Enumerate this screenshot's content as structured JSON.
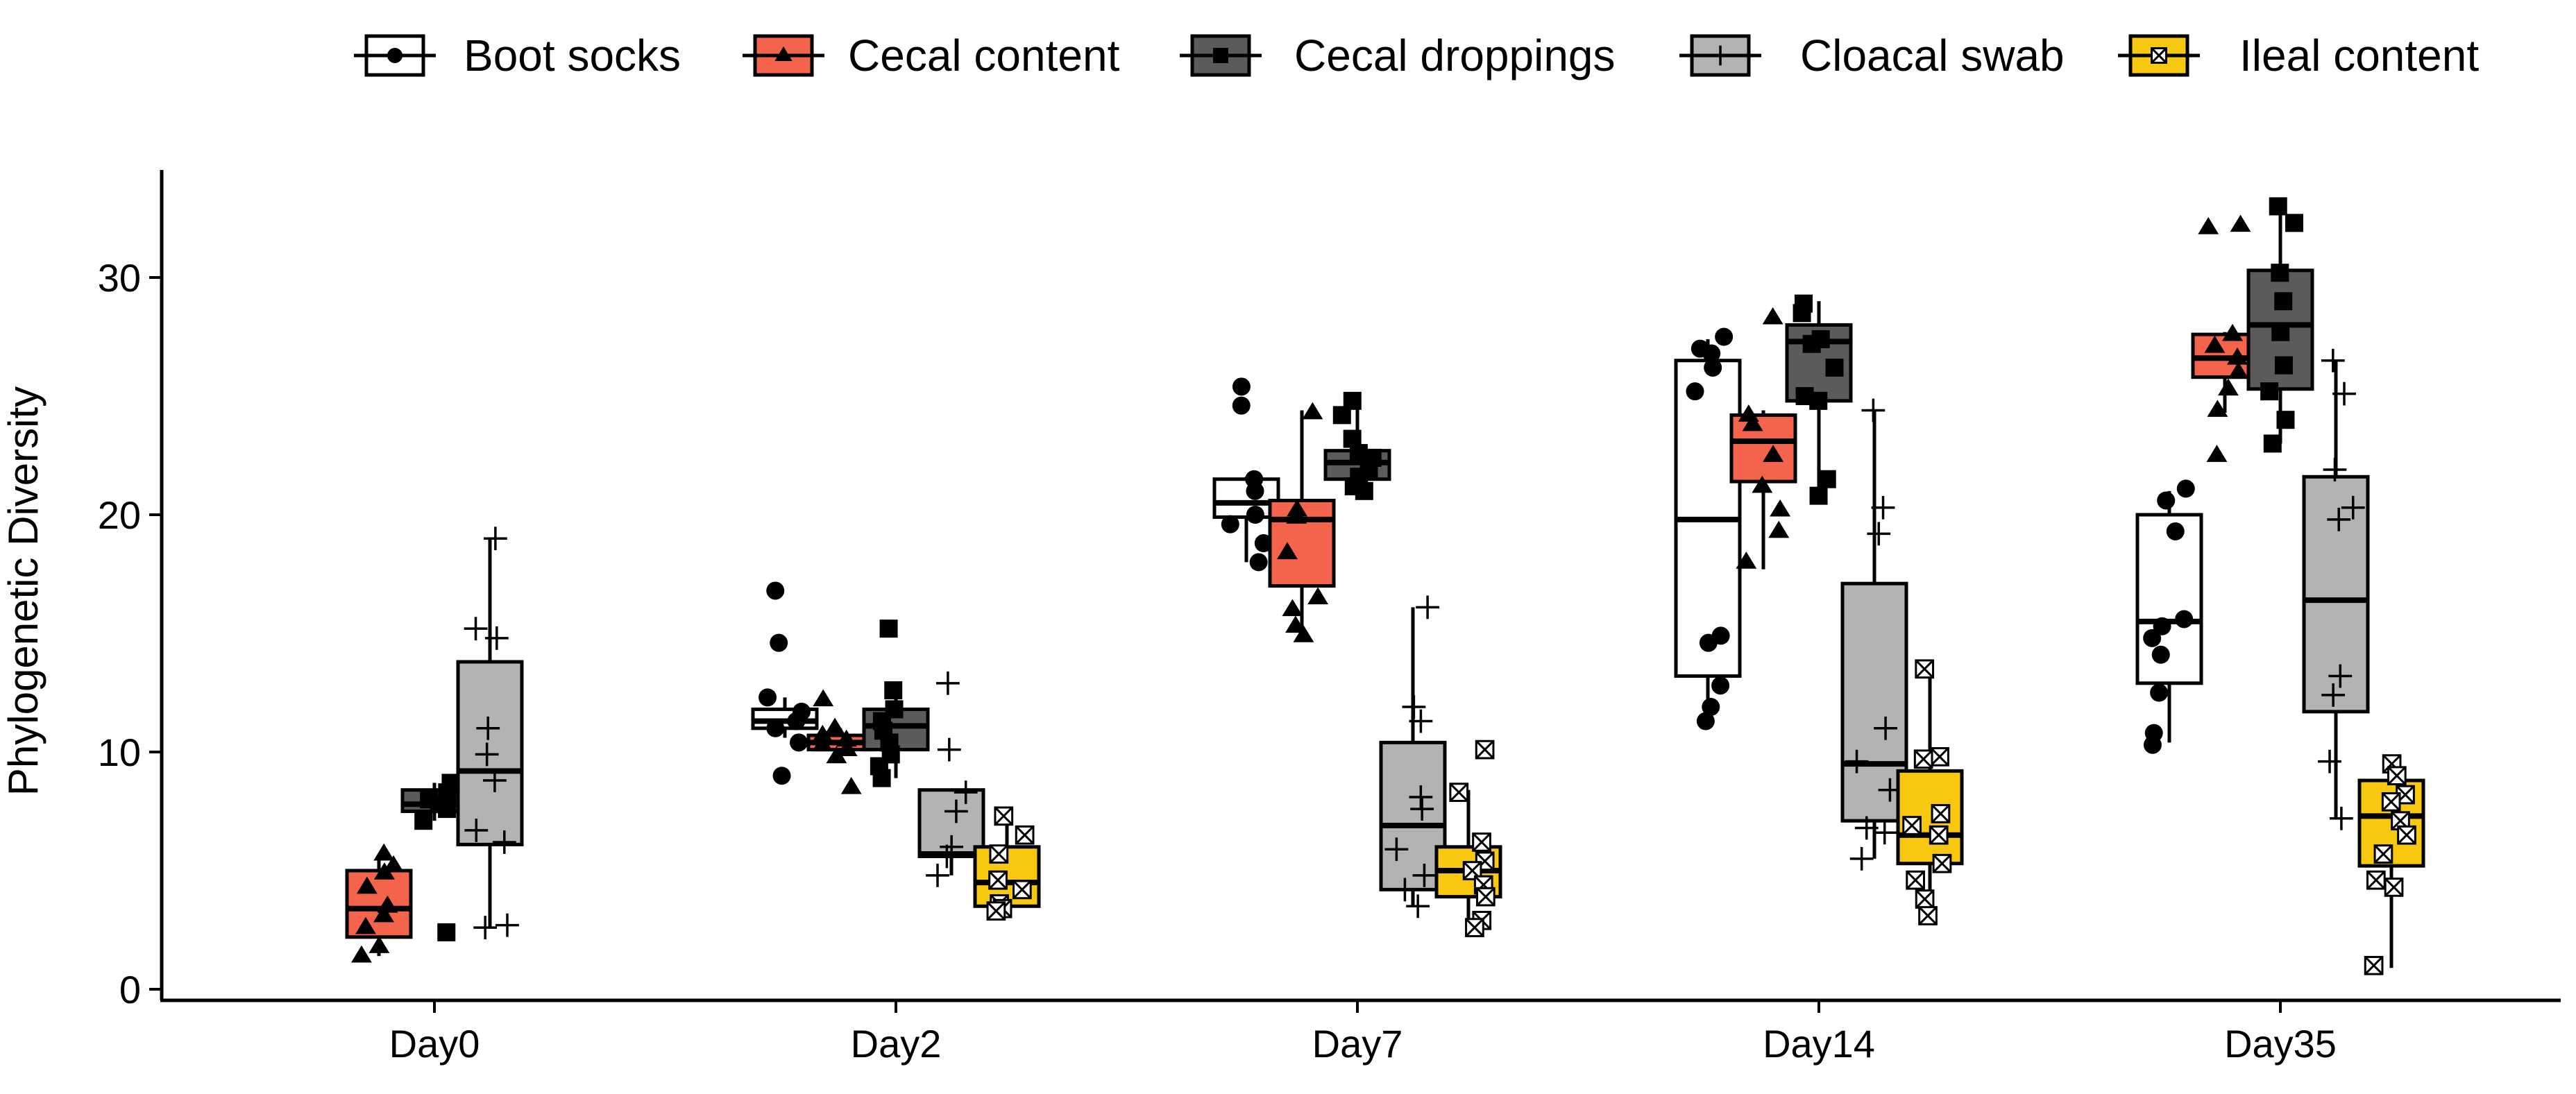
{
  "chart_data": {
    "type": "box",
    "title": "",
    "xlabel": "",
    "ylabel": "Phylogenetic Diversity",
    "ylim": [
      -0.5,
      35
    ],
    "yticks": [
      0,
      10,
      20,
      30
    ],
    "grid": false,
    "legend_position": "top",
    "categories": [
      "Day0",
      "Day2",
      "Day7",
      "Day14",
      "Day35"
    ],
    "series": [
      {
        "name": "Boot socks",
        "fill": "#ffffff",
        "marker": "circle",
        "boxes": [
          null,
          {
            "category": "Day2",
            "q1": 11.0,
            "median": 11.3,
            "q3": 11.8,
            "whisker_low": 10.6,
            "whisker_high": 12.3,
            "points": [
              16.8,
              14.6,
              12.3,
              11.7,
              11.3,
              11.0,
              10.4,
              9.0
            ]
          },
          {
            "category": "Day7",
            "q1": 19.9,
            "median": 20.5,
            "q3": 21.5,
            "whisker_low": 18.0,
            "whisker_high": 21.6,
            "points": [
              25.4,
              24.6,
              21.5,
              21.0,
              20.0,
              19.6,
              18.8,
              18.0
            ]
          },
          {
            "category": "Day14",
            "q1": 13.2,
            "median": 19.8,
            "q3": 26.5,
            "whisker_low": 11.3,
            "whisker_high": 27.4,
            "points": [
              27.5,
              27.0,
              26.8,
              26.2,
              25.2,
              14.9,
              14.6,
              12.8,
              11.9,
              11.3
            ]
          },
          {
            "category": "Day35",
            "q1": 12.9,
            "median": 15.5,
            "q3": 20.0,
            "whisker_low": 10.4,
            "whisker_high": 21.0,
            "points": [
              21.1,
              20.6,
              19.3,
              15.6,
              15.3,
              14.8,
              14.1,
              12.5,
              10.8,
              10.3
            ]
          }
        ]
      },
      {
        "name": "Cecal content",
        "fill": "#f4634c",
        "marker": "triangle",
        "boxes": [
          {
            "category": "Day0",
            "q1": 2.2,
            "median": 3.4,
            "q3": 5.0,
            "whisker_low": 1.4,
            "whisker_high": 5.6,
            "points": [
              5.7,
              5.2,
              4.9,
              4.3,
              3.5,
              3.1,
              2.6,
              1.8,
              1.4
            ]
          },
          {
            "category": "Day2",
            "q1": 10.1,
            "median": 10.4,
            "q3": 10.7,
            "whisker_low": 9.8,
            "whisker_high": 11.0,
            "points": [
              12.2,
              11.0,
              10.7,
              10.5,
              10.3,
              10.1,
              9.8,
              8.5
            ]
          },
          {
            "category": "Day7",
            "q1": 17.0,
            "median": 19.8,
            "q3": 20.6,
            "whisker_low": 14.8,
            "whisker_high": 24.4,
            "points": [
              24.3,
              20.2,
              19.9,
              18.4,
              16.5,
              16.0,
              15.3,
              14.9
            ]
          },
          {
            "category": "Day14",
            "q1": 21.4,
            "median": 23.1,
            "q3": 24.2,
            "whisker_low": 17.7,
            "whisker_high": 24.4,
            "points": [
              28.3,
              24.2,
              23.8,
              22.5,
              21.2,
              20.2,
              19.3,
              18.0
            ]
          },
          {
            "category": "Day35",
            "q1": 25.8,
            "median": 26.6,
            "q3": 27.6,
            "whisker_low": 24.3,
            "whisker_high": 27.7,
            "points": [
              32.2,
              32.1,
              27.6,
              27.1,
              26.6,
              26.0,
              25.3,
              24.4,
              22.5
            ]
          }
        ]
      },
      {
        "name": "Cecal droppings",
        "fill": "#5b5b5b",
        "marker": "square",
        "boxes": [
          {
            "category": "Day0",
            "q1": 7.5,
            "median": 7.8,
            "q3": 8.4,
            "whisker_low": 7.1,
            "whisker_high": 8.7,
            "points": [
              8.7,
              8.3,
              8.0,
              7.8,
              7.6,
              7.1,
              2.4
            ]
          },
          {
            "category": "Day2",
            "q1": 10.1,
            "median": 11.1,
            "q3": 11.8,
            "whisker_low": 8.9,
            "whisker_high": 12.6,
            "points": [
              15.2,
              12.6,
              11.8,
              11.3,
              10.9,
              10.4,
              9.9,
              9.4,
              8.9
            ]
          },
          {
            "category": "Day7",
            "q1": 21.5,
            "median": 22.2,
            "q3": 22.7,
            "whisker_low": 21.0,
            "whisker_high": 24.7,
            "points": [
              24.8,
              24.2,
              23.2,
              22.6,
              22.4,
              21.9,
              21.6,
              21.2,
              21.0
            ]
          },
          {
            "category": "Day14",
            "q1": 24.8,
            "median": 27.3,
            "q3": 28.0,
            "whisker_low": 20.7,
            "whisker_high": 29.0,
            "points": [
              28.9,
              28.5,
              27.4,
              27.2,
              26.2,
              25.0,
              24.8,
              21.5,
              20.8
            ]
          },
          {
            "category": "Day35",
            "q1": 25.3,
            "median": 28.0,
            "q3": 30.3,
            "whisker_low": 23.0,
            "whisker_high": 33.0,
            "points": [
              33.0,
              32.3,
              30.2,
              29.0,
              27.7,
              26.3,
              25.2,
              24.0,
              23.0
            ]
          }
        ]
      },
      {
        "name": "Cloacal swab",
        "fill": "#b3b3b3",
        "marker": "plus",
        "boxes": [
          {
            "category": "Day0",
            "q1": 6.1,
            "median": 9.2,
            "q3": 13.8,
            "whisker_low": 2.6,
            "whisker_high": 19.0,
            "points": [
              19.0,
              15.2,
              14.8,
              11.0,
              9.9,
              8.8,
              6.7,
              6.2,
              2.7,
              2.6
            ]
          },
          {
            "category": "Day2",
            "q1": 5.6,
            "median": 5.7,
            "q3": 8.4,
            "whisker_low": 4.8,
            "whisker_high": 8.4,
            "points": [
              12.9,
              10.1,
              8.3,
              7.5,
              6.0,
              5.6,
              4.8
            ]
          },
          {
            "category": "Day7",
            "q1": 4.2,
            "median": 6.9,
            "q3": 10.4,
            "whisker_low": 3.5,
            "whisker_high": 16.1,
            "points": [
              16.1,
              11.9,
              11.3,
              8.1,
              7.6,
              5.9,
              4.8,
              4.2,
              3.5
            ]
          },
          {
            "category": "Day14",
            "q1": 7.1,
            "median": 9.5,
            "q3": 17.1,
            "whisker_low": 5.5,
            "whisker_high": 24.4,
            "points": [
              24.4,
              20.3,
              19.2,
              11.0,
              9.6,
              8.4,
              6.8,
              6.6,
              5.5
            ]
          },
          {
            "category": "Day35",
            "q1": 11.7,
            "median": 16.4,
            "q3": 21.6,
            "whisker_low": 7.2,
            "whisker_high": 26.5,
            "points": [
              26.5,
              25.1,
              21.9,
              20.3,
              19.8,
              13.2,
              12.4,
              9.6,
              7.2
            ]
          }
        ]
      },
      {
        "name": "Ileal content",
        "fill": "#f7c80f",
        "marker": "boxed-x",
        "boxes": [
          null,
          {
            "category": "Day2",
            "q1": 3.5,
            "median": 4.5,
            "q3": 6.0,
            "whisker_low": 3.3,
            "whisker_high": 7.3,
            "points": [
              7.3,
              6.5,
              5.7,
              4.6,
              4.2,
              3.6,
              3.4,
              3.3
            ]
          },
          {
            "category": "Day7",
            "q1": 3.9,
            "median": 5.0,
            "q3": 6.0,
            "whisker_low": 2.6,
            "whisker_high": 8.4,
            "points": [
              10.1,
              8.3,
              6.2,
              5.4,
              5.0,
              4.4,
              3.9,
              2.9,
              2.6
            ]
          },
          {
            "category": "Day14",
            "q1": 5.3,
            "median": 6.5,
            "q3": 9.2,
            "whisker_low": 3.0,
            "whisker_high": 13.5,
            "points": [
              13.5,
              9.8,
              9.7,
              7.4,
              6.9,
              6.5,
              5.3,
              4.6,
              3.8,
              3.1
            ]
          },
          {
            "category": "Day35",
            "q1": 5.2,
            "median": 7.3,
            "q3": 8.8,
            "whisker_low": 0.9,
            "whisker_high": 9.5,
            "points": [
              9.5,
              9.0,
              8.2,
              7.9,
              7.1,
              6.5,
              5.7,
              4.6,
              4.3,
              1.0
            ]
          }
        ]
      }
    ]
  }
}
